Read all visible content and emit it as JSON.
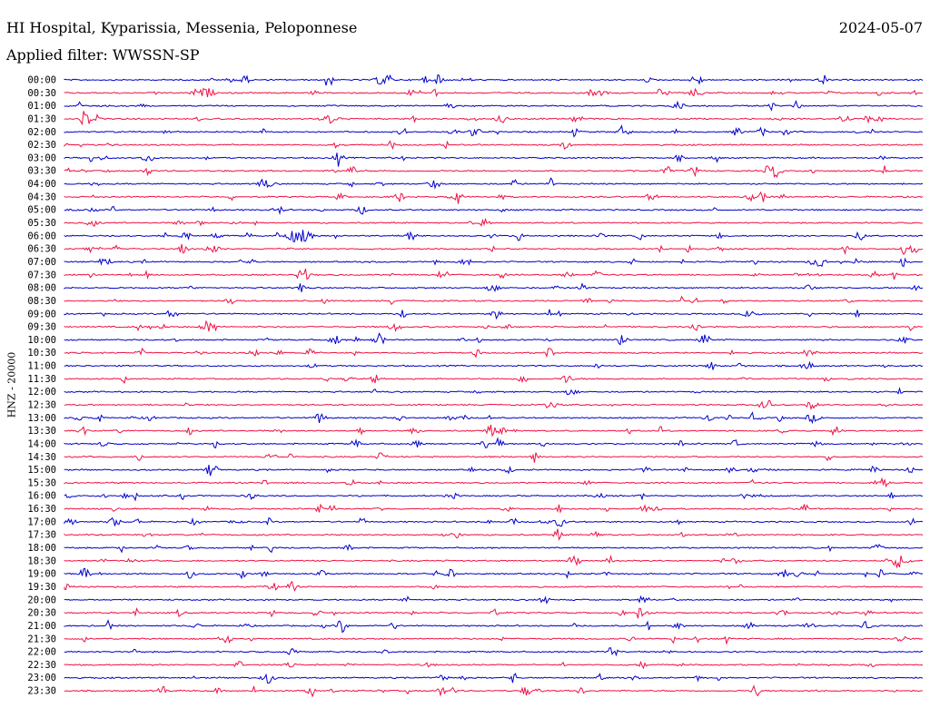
{
  "header": {
    "station": "HI Hospital, Kyparissia, Messenia, Peloponnese",
    "date": "2024-05-07",
    "filter": "Applied filter: WWSSN-SP"
  },
  "axis": {
    "ylabel": "HNZ - 20000"
  },
  "colors": {
    "blue": "#0000cc",
    "red": "#ee1144"
  },
  "chart_data": {
    "type": "line",
    "title": "",
    "ylabel": "HNZ - 20000",
    "trace_interval_minutes": 30,
    "color_cycle": [
      "#0000cc",
      "#ee1144"
    ],
    "rows": [
      "00:00",
      "00:30",
      "01:00",
      "01:30",
      "02:00",
      "02:30",
      "03:00",
      "03:30",
      "04:00",
      "04:30",
      "05:00",
      "05:30",
      "06:00",
      "06:30",
      "07:00",
      "07:30",
      "08:00",
      "08:30",
      "09:00",
      "09:30",
      "10:00",
      "10:30",
      "11:00",
      "11:30",
      "12:00",
      "12:30",
      "13:00",
      "13:30",
      "14:00",
      "14:30",
      "15:00",
      "15:30",
      "16:00",
      "16:30",
      "17:00",
      "17:30",
      "18:00",
      "18:30",
      "19:00",
      "19:30",
      "20:00",
      "20:30",
      "21:00",
      "21:30",
      "22:00",
      "22:30",
      "23:00",
      "23:30"
    ]
  }
}
